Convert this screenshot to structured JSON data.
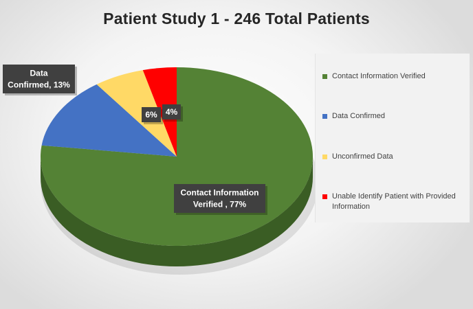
{
  "chart_data": {
    "type": "pie",
    "title": "Patient Study 1 - 246 Total Patients",
    "series": [
      {
        "name": "",
        "slices": [
          {
            "label": "Contact Information Verified",
            "value": 77,
            "color": "#548235",
            "side_color": "#3a5d24",
            "data_label": [
              "Contact Information",
              "Verified , 77%"
            ]
          },
          {
            "label": "Data Confirmed",
            "value": 13,
            "color": "#4472c4",
            "side_color": "#2f5190",
            "data_label": [
              "Data",
              "Confirmed, 13%"
            ]
          },
          {
            "label": "Unconfirmed Data",
            "value": 6,
            "color": "#ffd966",
            "side_color": "#c9a83e",
            "data_label": [
              "6%"
            ]
          },
          {
            "label": "Unable Identify Patient with Provided Information",
            "value": 4,
            "color": "#ff0000",
            "side_color": "#b30000",
            "data_label": [
              "4%"
            ]
          }
        ]
      }
    ],
    "legend": {
      "position": "right",
      "items": [
        {
          "label": "Contact Information Verified",
          "color": "#548235"
        },
        {
          "label": "Data Confirmed",
          "color": "#4472c4"
        },
        {
          "label": "Unconfirmed Data",
          "color": "#ffd966"
        },
        {
          "label": "Unable Identify Patient with Provided Information",
          "color": "#ff0000"
        }
      ]
    }
  }
}
